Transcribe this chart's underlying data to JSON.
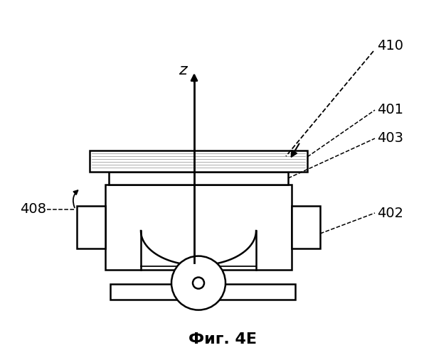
{
  "bg_color": "#ffffff",
  "line_color": "#000000",
  "fig_label": "Фиг. 4E",
  "z_label": "z"
}
